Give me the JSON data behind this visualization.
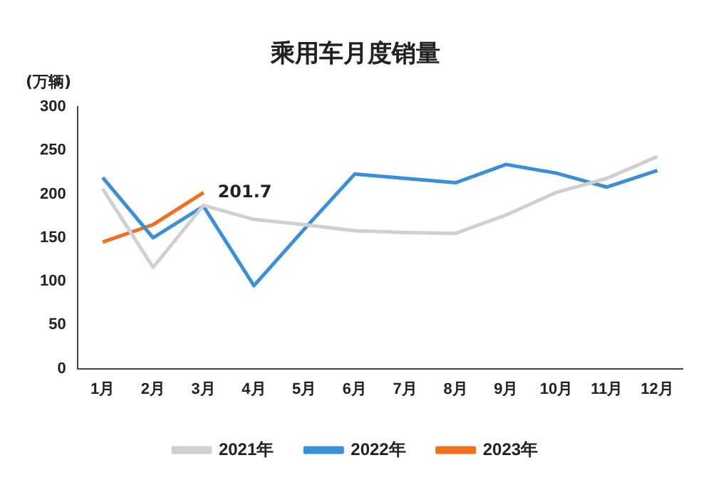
{
  "chart_data": {
    "type": "line",
    "title": "乘用车月度销量",
    "ylabel": "(万辆)",
    "categories": [
      "1月",
      "2月",
      "3月",
      "4月",
      "5月",
      "6月",
      "7月",
      "8月",
      "9月",
      "10月",
      "11月",
      "12月"
    ],
    "ylim": [
      0,
      300
    ],
    "yticks": [
      0,
      50,
      100,
      150,
      200,
      250,
      300
    ],
    "grid": false,
    "legend": "bottom",
    "marker": "none",
    "line_style": "solid",
    "series": [
      {
        "name": "2021年",
        "color": "#d0d0d0",
        "values": [
          206,
          116,
          187,
          171,
          165,
          158,
          156,
          155,
          176,
          202,
          218,
          243
        ]
      },
      {
        "name": "2022年",
        "color": "#3a8fd6",
        "values": [
          219,
          150,
          186,
          95,
          160,
          223,
          218,
          213,
          234,
          224,
          208,
          227
        ]
      },
      {
        "name": "2023年",
        "color": "#f07020",
        "values": [
          145,
          165,
          201.7,
          null,
          null,
          null,
          null,
          null,
          null,
          null,
          null,
          null
        ],
        "value_labels": [
          null,
          null,
          "201.7",
          null,
          null,
          null,
          null,
          null,
          null,
          null,
          null,
          null
        ]
      }
    ]
  }
}
